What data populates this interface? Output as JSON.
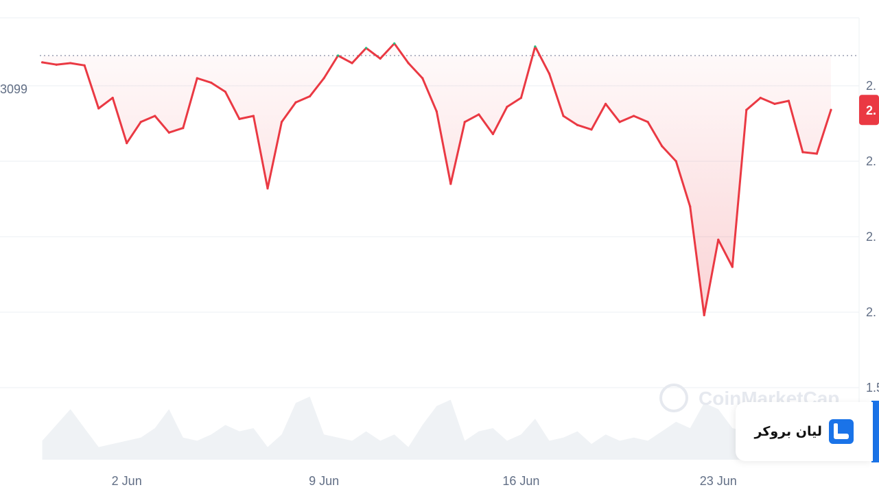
{
  "chart_data": {
    "type": "line",
    "x_ticks": [
      "2 Jun",
      "9 Jun",
      "16 Jun",
      "23 Jun"
    ],
    "y_ticks": [
      "2.",
      "2.",
      "2.",
      "2.",
      "1.5"
    ],
    "reference_line": {
      "label": "3099"
    },
    "current_price_tag": "2.",
    "series": [
      {
        "x": [
          "2025-05-30T00:00",
          "2025-05-30T12:00",
          "2025-05-31T00:00",
          "2025-05-31T12:00",
          "2025-06-01T00:00",
          "2025-06-01T12:00",
          "2025-06-02T00:00",
          "2025-06-02T12:00",
          "2025-06-03T00:00",
          "2025-06-03T12:00",
          "2025-06-04T00:00",
          "2025-06-04T12:00",
          "2025-06-05T00:00",
          "2025-06-05T12:00",
          "2025-06-06T00:00",
          "2025-06-06T12:00",
          "2025-06-07T00:00",
          "2025-06-07T12:00",
          "2025-06-08T00:00",
          "2025-06-08T12:00",
          "2025-06-09T00:00",
          "2025-06-09T12:00",
          "2025-06-10T00:00",
          "2025-06-10T12:00",
          "2025-06-11T00:00",
          "2025-06-11T12:00",
          "2025-06-12T00:00",
          "2025-06-12T12:00",
          "2025-06-13T00:00",
          "2025-06-13T12:00",
          "2025-06-14T00:00",
          "2025-06-14T12:00",
          "2025-06-15T00:00",
          "2025-06-15T12:00",
          "2025-06-16T00:00",
          "2025-06-16T12:00",
          "2025-06-17T00:00",
          "2025-06-17T12:00",
          "2025-06-18T00:00",
          "2025-06-18T12:00",
          "2025-06-19T00:00",
          "2025-06-19T12:00",
          "2025-06-20T00:00",
          "2025-06-20T12:00",
          "2025-06-21T00:00",
          "2025-06-21T12:00",
          "2025-06-22T00:00",
          "2025-06-22T12:00",
          "2025-06-23T00:00",
          "2025-06-23T12:00",
          "2025-06-24T00:00",
          "2025-06-24T12:00",
          "2025-06-25T00:00",
          "2025-06-25T12:00",
          "2025-06-26T00:00",
          "2025-06-26T12:00",
          "2025-06-27T00:00"
        ],
        "values": [
          0.955,
          0.94,
          0.95,
          0.935,
          0.65,
          0.72,
          0.42,
          0.56,
          0.6,
          0.49,
          0.52,
          0.85,
          0.82,
          0.76,
          0.58,
          0.6,
          0.12,
          0.56,
          0.69,
          0.73,
          0.85,
          1.0,
          0.95,
          1.05,
          0.98,
          1.08,
          0.95,
          0.85,
          0.63,
          0.15,
          0.56,
          0.61,
          0.48,
          0.66,
          0.72,
          1.06,
          0.88,
          0.6,
          0.54,
          0.51,
          0.68,
          0.56,
          0.6,
          0.56,
          0.4,
          0.3,
          0.0,
          -0.72,
          -0.22,
          -0.4,
          0.64,
          0.72,
          0.68,
          0.7,
          0.36,
          0.35,
          0.64
        ]
      }
    ],
    "volume": [
      0.3,
      0.55,
      0.8,
      0.5,
      0.2,
      0.25,
      0.3,
      0.35,
      0.5,
      0.8,
      0.35,
      0.3,
      0.4,
      0.55,
      0.45,
      0.5,
      0.2,
      0.4,
      0.9,
      1.0,
      0.4,
      0.35,
      0.3,
      0.45,
      0.3,
      0.4,
      0.2,
      0.55,
      0.85,
      0.95,
      0.3,
      0.45,
      0.5,
      0.3,
      0.4,
      0.65,
      0.3,
      0.35,
      0.45,
      0.25,
      0.4,
      0.3,
      0.35,
      0.3,
      0.45,
      0.6,
      0.5,
      0.9,
      0.8,
      0.5,
      0.45,
      0.4,
      0.35,
      0.3,
      0.3,
      0.35,
      0.3
    ],
    "colors": {
      "line_down": "#ea3943",
      "line_up": "#16c784",
      "volume": "#eff2f5",
      "grid": "#eff2f5",
      "reference": "#858ca2"
    }
  },
  "watermark": {
    "text": "CoinMarketCap"
  },
  "brand": {
    "name": "لیان بروکر"
  }
}
